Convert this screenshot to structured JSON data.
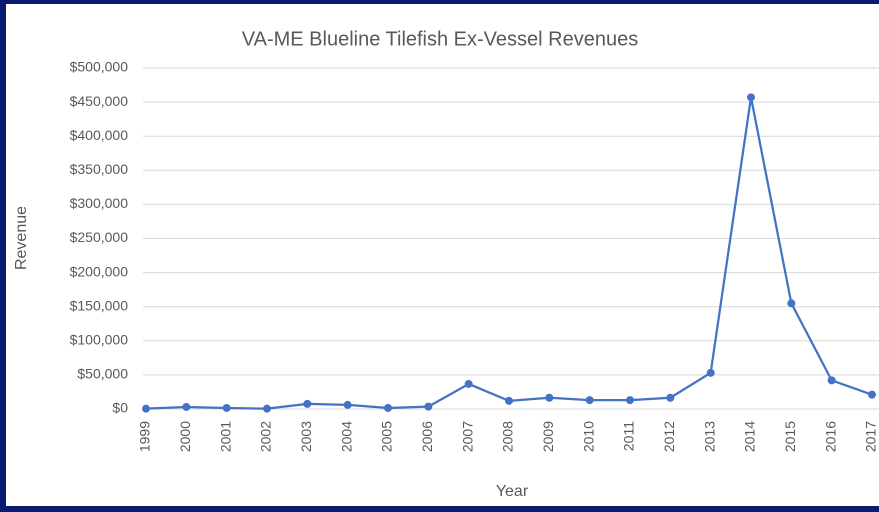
{
  "chart_data": {
    "type": "line",
    "title": "VA-ME Blueline Tilefish Ex-Vessel Revenues",
    "x_label": "Year",
    "y_label": "Revenue",
    "categories": [
      "1999",
      "2000",
      "2001",
      "2002",
      "2003",
      "2004",
      "2005",
      "2006",
      "2007",
      "2008",
      "2009",
      "2010",
      "2011",
      "2012",
      "2013",
      "2014",
      "2015",
      "2016",
      "2017"
    ],
    "series": [
      {
        "name": "Revenue",
        "color": "#4472c4",
        "values": [
          500,
          3000,
          1500,
          500,
          7500,
          6000,
          1500,
          3500,
          36700,
          12000,
          16500,
          13000,
          13000,
          16500,
          53000,
          457000,
          155000,
          42000,
          21000
        ]
      }
    ],
    "ylim": [
      0,
      500000
    ],
    "yticks": [
      {
        "value": 0,
        "label": "$0"
      },
      {
        "value": 50000,
        "label": "$50,000"
      },
      {
        "value": 100000,
        "label": "$100,000"
      },
      {
        "value": 150000,
        "label": "$150,000"
      },
      {
        "value": 200000,
        "label": "$200,000"
      },
      {
        "value": 250000,
        "label": "$250,000"
      },
      {
        "value": 300000,
        "label": "$300,000"
      },
      {
        "value": 350000,
        "label": "$350,000"
      },
      {
        "value": 400000,
        "label": "$400,000"
      },
      {
        "value": 450000,
        "label": "$450,000"
      },
      {
        "value": 500000,
        "label": "$500,000"
      }
    ],
    "grid": true
  }
}
